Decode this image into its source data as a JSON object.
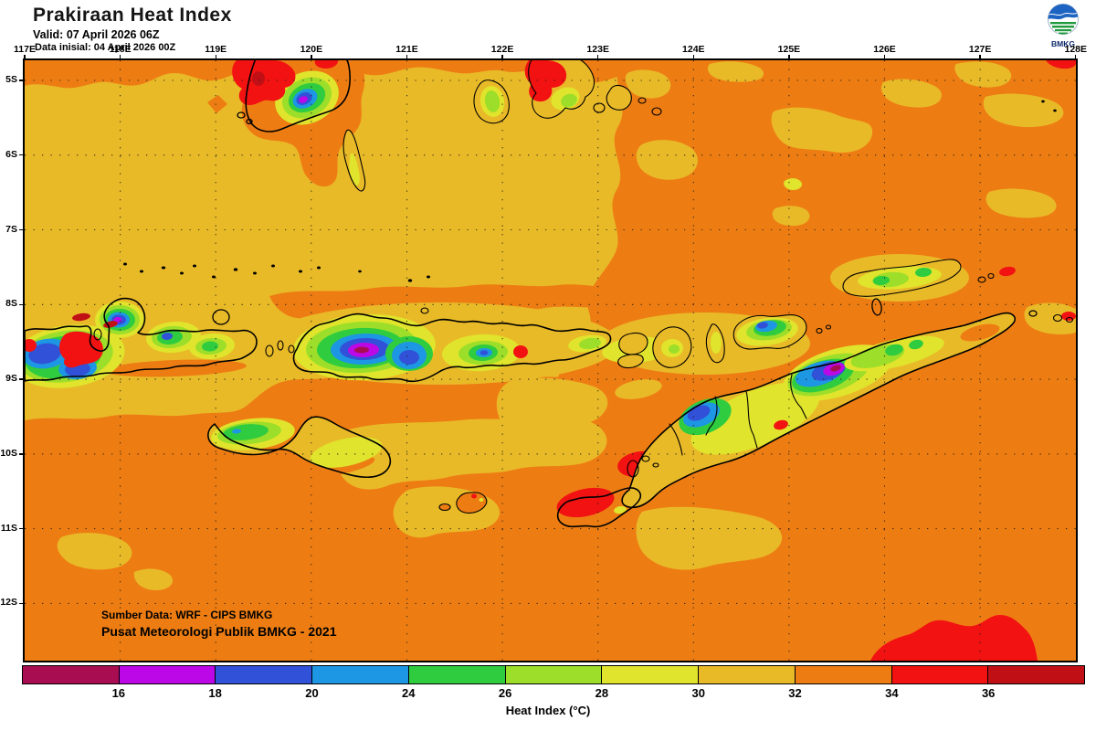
{
  "header": {
    "title": "Prakiraan Heat Index",
    "valid_line": "Valid: 07 April 2026 06Z",
    "init_line": "Data inisial: 04 April 2026 00Z",
    "logo_label": "BMKG"
  },
  "axes": {
    "lon_labels": [
      "117E",
      "118E",
      "119E",
      "120E",
      "121E",
      "122E",
      "123E",
      "124E",
      "125E",
      "126E",
      "127E",
      "128E"
    ],
    "lat_labels": [
      "5S",
      "6S",
      "7S",
      "8S",
      "9S",
      "10S",
      "11S",
      "12S"
    ]
  },
  "map_overlay": {
    "source_line1": "Sumber Data: WRF - CIPS BMKG",
    "source_line2": "Pusat Meteorologi Publik BMKG - 2021"
  },
  "legend": {
    "title": "Heat Index (°C)",
    "tick_labels": [
      "16",
      "18",
      "20",
      "24",
      "26",
      "28",
      "30",
      "32",
      "34",
      "36"
    ],
    "segment_colors": [
      "#A80D52",
      "#BC08E6",
      "#3152D8",
      "#1D96E3",
      "#2FCC3F",
      "#9CDE29",
      "#E0E42C",
      "#E9BA28",
      "#ED7D13",
      "#F21212",
      "#C11015"
    ]
  },
  "palette": {
    "maroon": "#A80D52",
    "magenta": "#BC08E6",
    "royalblue": "#3152D8",
    "lightblue": "#1D96E3",
    "green": "#2FCC3F",
    "yellowgreen": "#9CDE29",
    "yellow": "#E0E42C",
    "gold": "#E9BA28",
    "orange": "#ED7D13",
    "red": "#F21212",
    "darkred": "#C11015",
    "coastline": "#000000"
  }
}
